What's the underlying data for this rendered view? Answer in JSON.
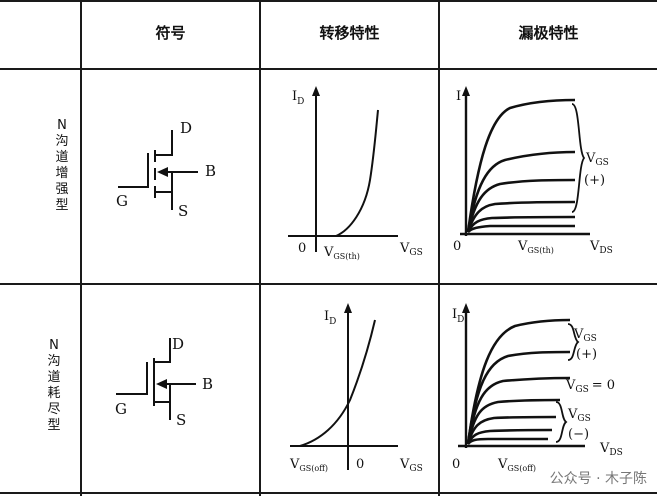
{
  "headers": {
    "symbol": "符号",
    "transfer": "转移特性",
    "output": "漏极特性"
  },
  "rows": [
    {
      "label": [
        "N",
        "沟",
        "道",
        "增",
        "强",
        "型"
      ],
      "symbol": {
        "d": "D",
        "b": "B",
        "g": "G",
        "s": "S"
      },
      "transfer": {
        "y": "I",
        "ysub": "D",
        "origin": "0",
        "vth": "V",
        "vthsub": "GS(th)",
        "x": "V",
        "xsub": "GS"
      },
      "output": {
        "y": "I",
        "origin": "0",
        "vgs": "V",
        "vgssub": "GS",
        "sign": "(+)",
        "vmark": "V",
        "vmarksub": "GS(th)",
        "x": "V",
        "xsub": "DS"
      }
    },
    {
      "label": [
        "N",
        "沟",
        "道",
        "耗",
        "尽",
        "型"
      ],
      "symbol": {
        "d": "D",
        "b": "B",
        "g": "G",
        "s": "S"
      },
      "transfer": {
        "y": "I",
        "ysub": "D",
        "origin": "0",
        "voff": "V",
        "voffsub": "GS(off)",
        "x": "V",
        "xsub": "GS"
      },
      "output": {
        "y": "I",
        "ysub": "D",
        "origin": "0",
        "vgsp": "V",
        "vgspsub": "GS",
        "signp": "(+)",
        "vgs0": "V",
        "vgs0sub": "GS",
        "vgs0val": "= 0",
        "vgsn": "V",
        "vgsnsub": "GS",
        "signn": "(−)",
        "vmark": "V",
        "vmarksub": "GS(off)",
        "x": "V",
        "xsub": "DS"
      }
    }
  ],
  "watermark": "公众号 · 木子陈"
}
